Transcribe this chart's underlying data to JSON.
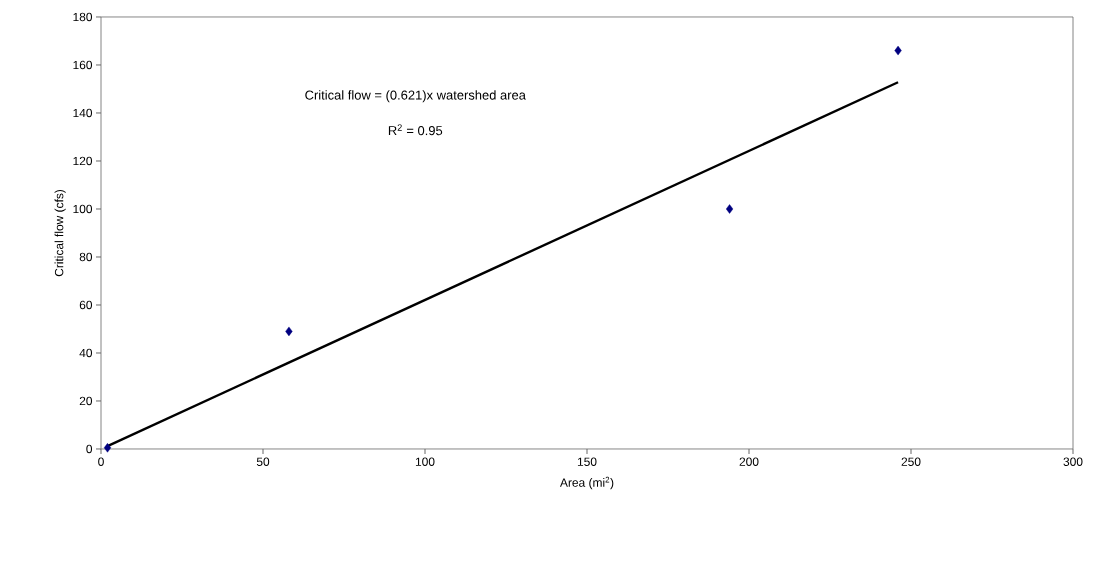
{
  "chart_data": {
    "type": "scatter",
    "xlabel": "Area (mi$^{2}$)",
    "ylabel": "Critical flow (cfs)",
    "xlim": [
      0,
      300
    ],
    "ylim": [
      0,
      180
    ],
    "xticks": [
      0,
      50,
      100,
      150,
      200,
      250,
      300
    ],
    "yticks": [
      0,
      20,
      40,
      60,
      80,
      100,
      120,
      140,
      160,
      180
    ],
    "grid": false,
    "annotations": [
      "Critical flow = (0.621)x watershed area",
      "R$^{2}$ = 0.95"
    ],
    "series": [
      {
        "color": "#000080",
        "marker": "diamond",
        "x": [
          2,
          58,
          194,
          246
        ],
        "values": [
          0.5,
          49,
          100,
          166
        ]
      },
      {
        "type": "line",
        "color": "#000000",
        "marker": "none",
        "line_style": "solid",
        "x": [
          2,
          246
        ],
        "values": [
          1.2,
          152.8
        ]
      }
    ]
  }
}
